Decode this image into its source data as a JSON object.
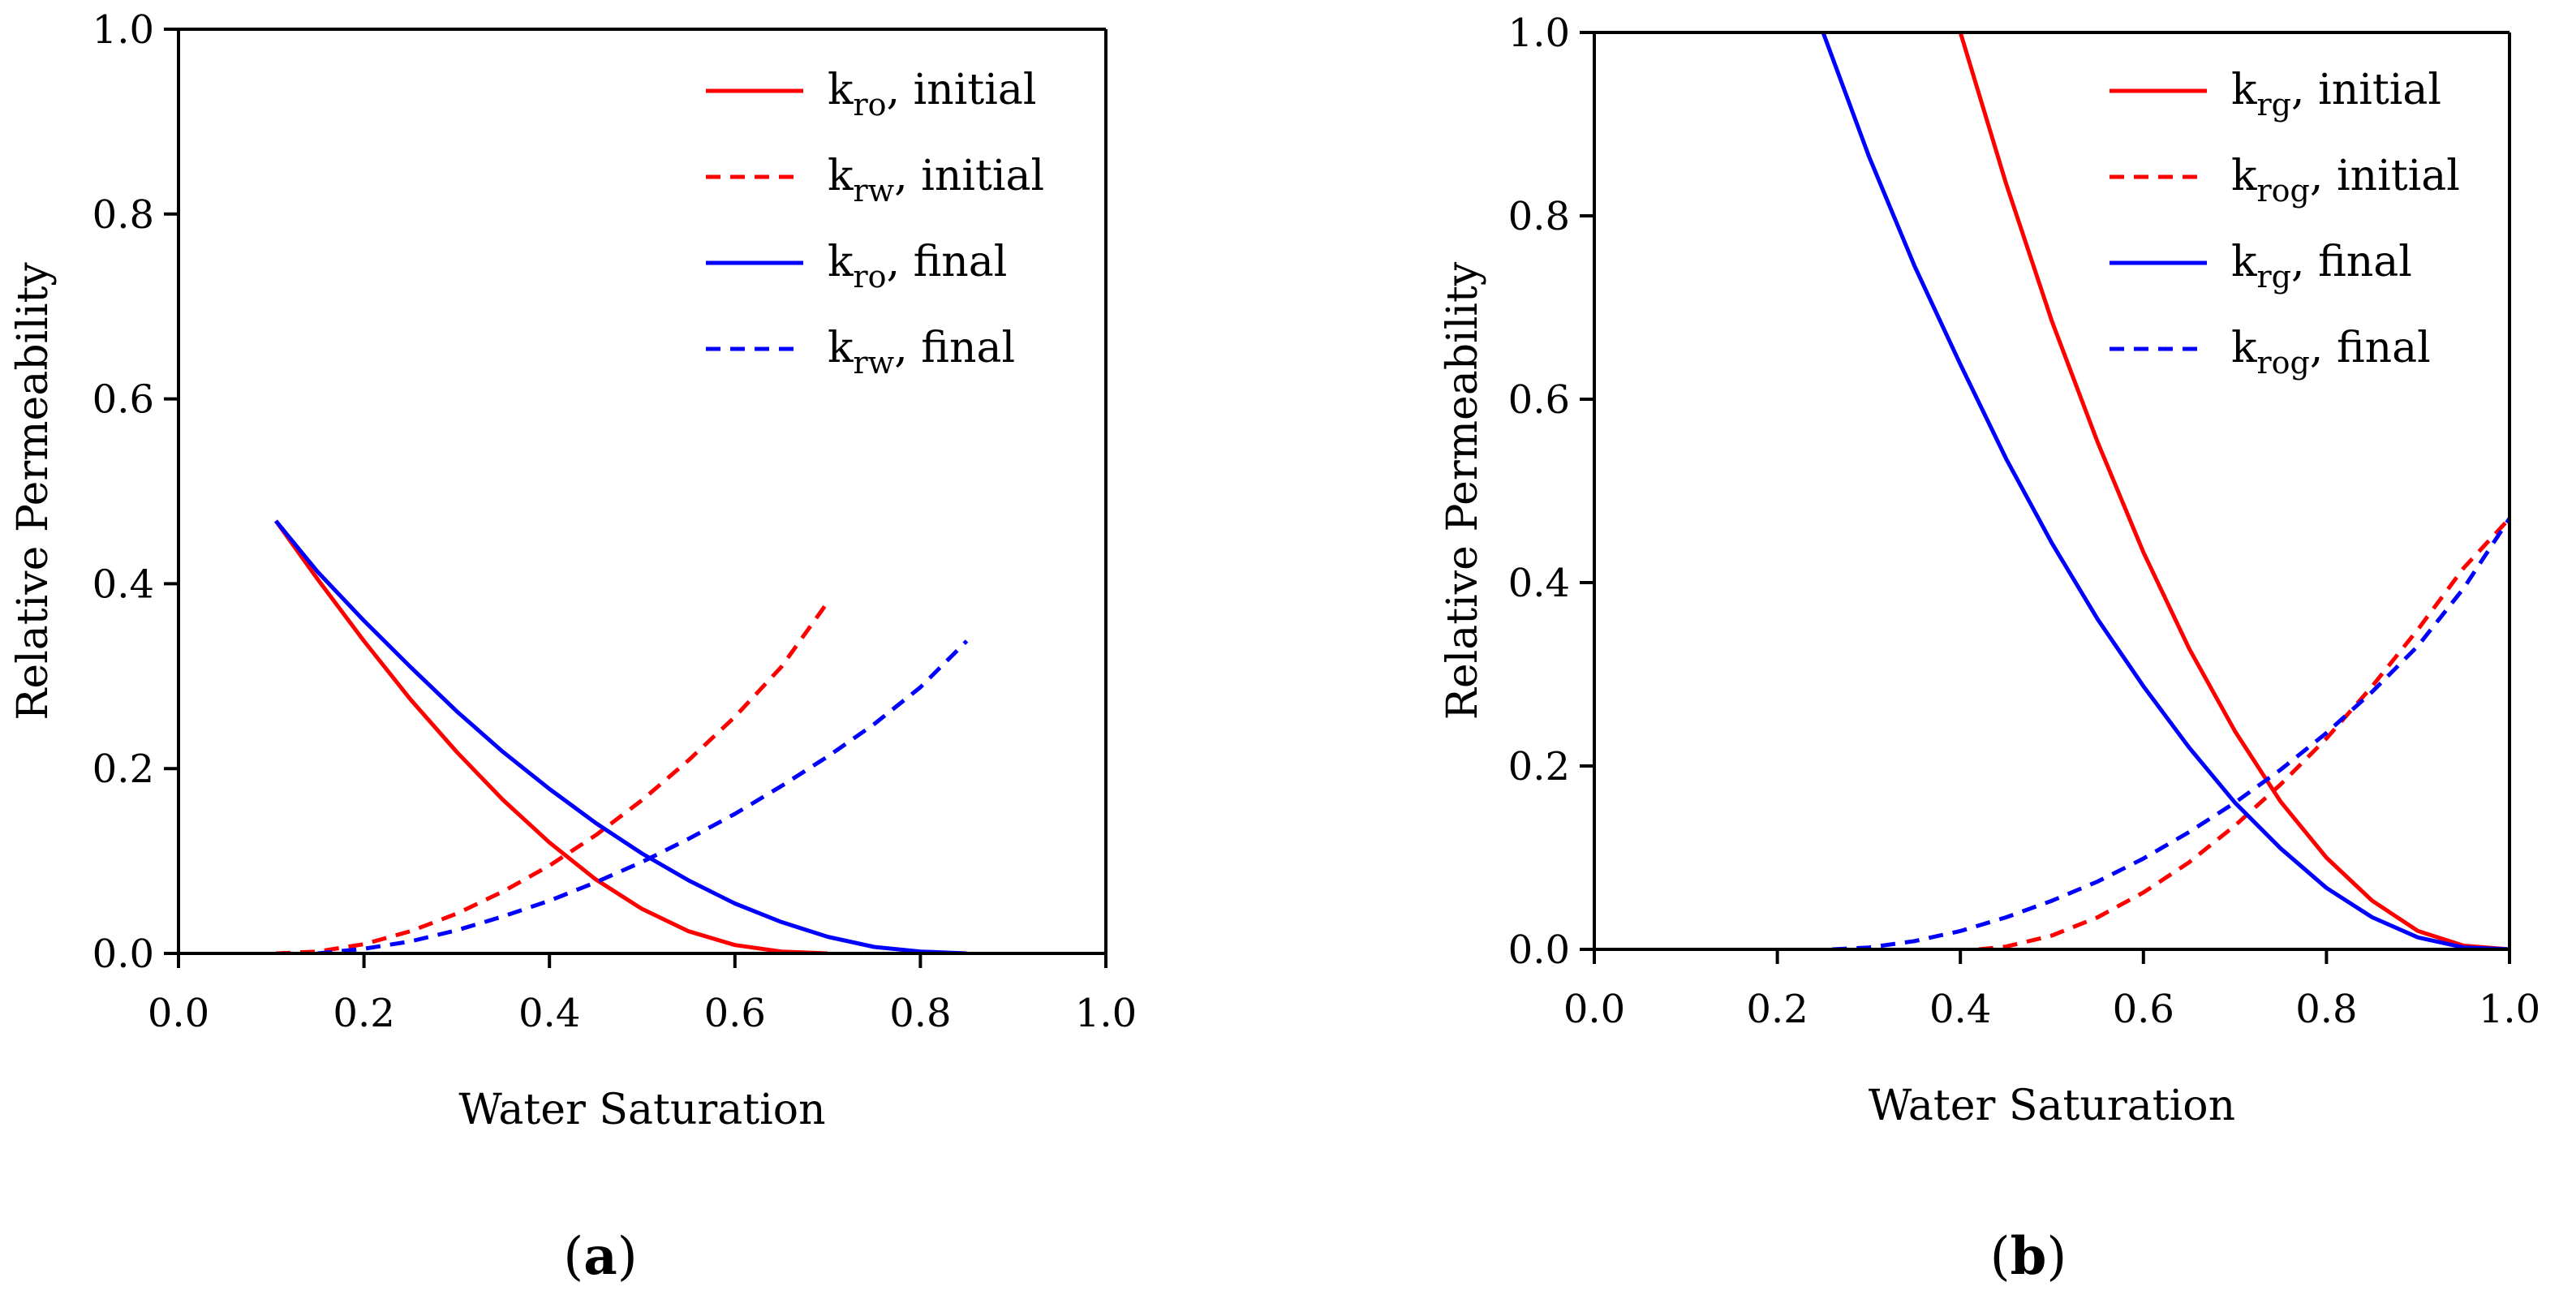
{
  "chart_data": [
    {
      "type": "line",
      "panel_label": "a",
      "xlabel": "Water Saturation",
      "ylabel": "Relative Permeability",
      "xlim": [
        0,
        1
      ],
      "ylim": [
        0,
        1
      ],
      "xticks": [
        "0.0",
        "0.2",
        "0.4",
        "0.6",
        "0.8",
        "1.0"
      ],
      "yticks": [
        "0.0",
        "0.2",
        "0.4",
        "0.6",
        "0.8",
        "1.0"
      ],
      "grid": false,
      "legend_position": "top-right",
      "series": [
        {
          "main": "k",
          "sub": "ro",
          "suffix": ", initial",
          "color": "#ff0000",
          "dash": false,
          "x": [
            0.105,
            0.15,
            0.2,
            0.25,
            0.3,
            0.35,
            0.4,
            0.45,
            0.5,
            0.55,
            0.6,
            0.65,
            0.7
          ],
          "y": [
            0.468,
            0.405,
            0.338,
            0.275,
            0.218,
            0.166,
            0.12,
            0.08,
            0.048,
            0.024,
            0.009,
            0.002,
            0.0
          ]
        },
        {
          "main": "k",
          "sub": "rw",
          "suffix": ", initial",
          "color": "#ff0000",
          "dash": true,
          "x": [
            0.105,
            0.15,
            0.2,
            0.25,
            0.3,
            0.35,
            0.4,
            0.45,
            0.5,
            0.55,
            0.6,
            0.65,
            0.7
          ],
          "y": [
            0.0,
            0.002,
            0.01,
            0.024,
            0.043,
            0.067,
            0.095,
            0.128,
            0.166,
            0.209,
            0.256,
            0.31,
            0.38
          ]
        },
        {
          "main": "k",
          "sub": "ro",
          "suffix": ", final",
          "color": "#0000ff",
          "dash": false,
          "x": [
            0.105,
            0.15,
            0.2,
            0.25,
            0.3,
            0.35,
            0.4,
            0.45,
            0.5,
            0.55,
            0.6,
            0.65,
            0.7,
            0.75,
            0.8,
            0.85
          ],
          "y": [
            0.468,
            0.413,
            0.36,
            0.31,
            0.262,
            0.218,
            0.178,
            0.141,
            0.108,
            0.079,
            0.054,
            0.034,
            0.018,
            0.007,
            0.002,
            0.0
          ]
        },
        {
          "main": "k",
          "sub": "rw",
          "suffix": ", final",
          "color": "#0000ff",
          "dash": true,
          "x": [
            0.15,
            0.2,
            0.25,
            0.3,
            0.35,
            0.4,
            0.45,
            0.5,
            0.55,
            0.6,
            0.65,
            0.7,
            0.75,
            0.8,
            0.85
          ],
          "y": [
            0.0,
            0.005,
            0.013,
            0.025,
            0.04,
            0.057,
            0.077,
            0.099,
            0.124,
            0.151,
            0.181,
            0.213,
            0.248,
            0.288,
            0.338
          ]
        }
      ]
    },
    {
      "type": "line",
      "panel_label": "b",
      "xlabel": "Water Saturation",
      "ylabel": "Relative Permeability",
      "xlim": [
        0,
        1
      ],
      "ylim": [
        0,
        1
      ],
      "xticks": [
        "0.0",
        "0.2",
        "0.4",
        "0.6",
        "0.8",
        "1.0"
      ],
      "yticks": [
        "0.0",
        "0.2",
        "0.4",
        "0.6",
        "0.8",
        "1.0"
      ],
      "grid": false,
      "legend_position": "top-right",
      "series": [
        {
          "main": "k",
          "sub": "rg",
          "suffix": ", initial",
          "color": "#ff0000",
          "dash": false,
          "x": [
            0.4,
            0.45,
            0.5,
            0.55,
            0.6,
            0.65,
            0.7,
            0.75,
            0.8,
            0.85,
            0.9,
            0.95,
            1.0
          ],
          "y": [
            1.0,
            0.835,
            0.685,
            0.553,
            0.433,
            0.328,
            0.238,
            0.161,
            0.1,
            0.053,
            0.02,
            0.004,
            0.0
          ]
        },
        {
          "main": "k",
          "sub": "rog",
          "suffix": ", initial",
          "color": "#ff0000",
          "dash": true,
          "x": [
            0.42,
            0.45,
            0.5,
            0.55,
            0.6,
            0.65,
            0.7,
            0.75,
            0.8,
            0.85,
            0.9,
            0.95,
            1.0
          ],
          "y": [
            0.0,
            0.003,
            0.015,
            0.035,
            0.062,
            0.095,
            0.135,
            0.18,
            0.23,
            0.287,
            0.349,
            0.416,
            0.47
          ]
        },
        {
          "main": "k",
          "sub": "rg",
          "suffix": ", final",
          "color": "#0000ff",
          "dash": false,
          "x": [
            0.25,
            0.3,
            0.35,
            0.4,
            0.45,
            0.5,
            0.55,
            0.6,
            0.65,
            0.7,
            0.75,
            0.8,
            0.85,
            0.9,
            0.95,
            1.0
          ],
          "y": [
            1.0,
            0.865,
            0.745,
            0.638,
            0.535,
            0.443,
            0.36,
            0.287,
            0.22,
            0.16,
            0.11,
            0.067,
            0.035,
            0.013,
            0.002,
            0.0
          ]
        },
        {
          "main": "k",
          "sub": "rog",
          "suffix": ", final",
          "color": "#0000ff",
          "dash": true,
          "x": [
            0.26,
            0.3,
            0.35,
            0.4,
            0.45,
            0.5,
            0.55,
            0.6,
            0.65,
            0.7,
            0.75,
            0.8,
            0.85,
            0.9,
            0.95,
            1.0
          ],
          "y": [
            0.0,
            0.002,
            0.009,
            0.02,
            0.035,
            0.053,
            0.074,
            0.099,
            0.128,
            0.16,
            0.196,
            0.236,
            0.281,
            0.331,
            0.394,
            0.47
          ]
        }
      ]
    }
  ]
}
